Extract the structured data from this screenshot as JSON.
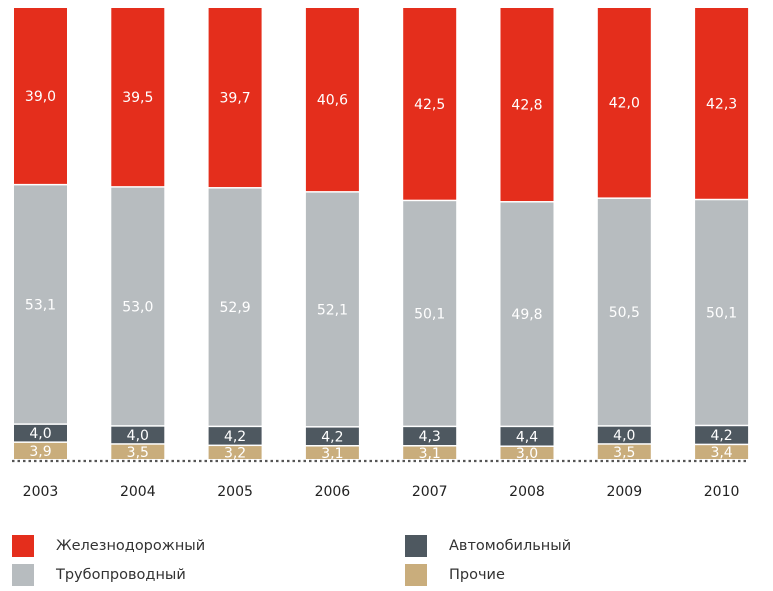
{
  "chart_data": {
    "type": "bar",
    "stacked": true,
    "normalized_to_100": true,
    "categories": [
      "2003",
      "2004",
      "2005",
      "2006",
      "2007",
      "2008",
      "2009",
      "2010"
    ],
    "series": [
      {
        "name": "Прочие",
        "color": "#c9ad7c",
        "values": [
          3.9,
          3.5,
          3.2,
          3.1,
          3.1,
          3.0,
          3.5,
          3.4
        ],
        "labels": [
          "3,9",
          "3,5",
          "3,2",
          "3,1",
          "3,1",
          "3,0",
          "3,5",
          "3,4"
        ]
      },
      {
        "name": "Автомобильный",
        "color": "#4e5860",
        "values": [
          4.0,
          4.0,
          4.2,
          4.2,
          4.3,
          4.4,
          4.0,
          4.2
        ],
        "labels": [
          "4,0",
          "4,0",
          "4,2",
          "4,2",
          "4,3",
          "4,4",
          "4,0",
          "4,2"
        ]
      },
      {
        "name": "Трубопроводный",
        "color": "#b7bcbf",
        "values": [
          53.1,
          53.0,
          52.9,
          52.1,
          50.1,
          49.8,
          50.5,
          50.1
        ],
        "labels": [
          "53,1",
          "53,0",
          "52,9",
          "52,1",
          "50,1",
          "49,8",
          "50,5",
          "50,1"
        ]
      },
      {
        "name": "Железнодорожный",
        "color": "#e42e1c",
        "values": [
          39.0,
          39.5,
          39.7,
          40.6,
          42.5,
          42.8,
          42.0,
          42.3
        ],
        "labels": [
          "39,0",
          "39,5",
          "39,7",
          "40,6",
          "42,5",
          "42,8",
          "42,0",
          "42,3"
        ]
      }
    ],
    "legend": {
      "placement": "bottom",
      "items": [
        {
          "series": "Железнодорожный",
          "label": "Железнодорожный",
          "color": "#e42e1c"
        },
        {
          "series": "Автомобильный",
          "label": "Автомобильный",
          "color": "#4e5860"
        },
        {
          "series": "Трубопроводный",
          "label": "Трубопроводный",
          "color": "#b7bcbf"
        },
        {
          "series": "Прочие",
          "label": "Прочие",
          "color": "#c9ad7c"
        }
      ]
    },
    "title": "",
    "xlabel": "",
    "ylabel": "",
    "grid": false,
    "baseline_style": "dotted"
  }
}
